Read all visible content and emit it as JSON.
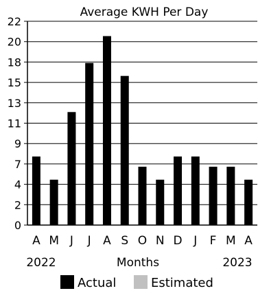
{
  "chart_data": {
    "type": "bar",
    "title": "Average KWH Per Day",
    "xlabel": "Months",
    "ylabel": "",
    "year_start": "2022",
    "year_end": "2023",
    "categories": [
      "A",
      "M",
      "J",
      "J",
      "A",
      "S",
      "O",
      "N",
      "D",
      "J",
      "F",
      "M",
      "A"
    ],
    "series": [
      {
        "name": "Actual",
        "color": "#000000",
        "values": [
          7.4,
          4.9,
          12.2,
          17.5,
          20.4,
          16.1,
          6.3,
          4.9,
          7.4,
          7.4,
          6.3,
          6.3,
          4.9
        ]
      },
      {
        "name": "Estimated",
        "color": "#c0c0c0",
        "values": [
          0,
          0,
          0,
          0,
          0,
          0,
          0,
          0,
          0,
          0,
          0,
          0,
          0
        ]
      }
    ],
    "yticks": [
      "0",
      "2",
      "4",
      "7",
      "9",
      "11",
      "13",
      "15",
      "18",
      "20",
      "22"
    ],
    "ylim": [
      0,
      22
    ],
    "grid": true,
    "legend_position": "bottom-center"
  }
}
